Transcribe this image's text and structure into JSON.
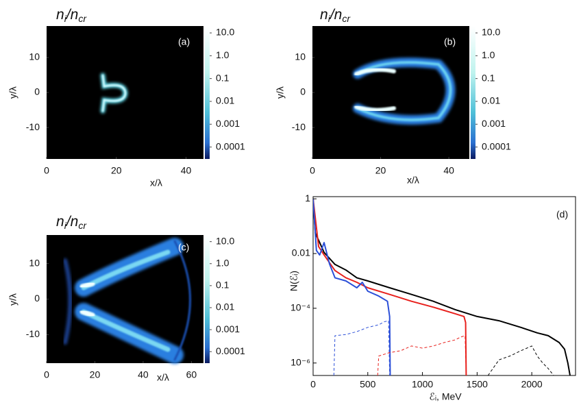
{
  "chart_data": [
    {
      "type": "density-map",
      "title": "ni/ncr",
      "annotation": "(a)",
      "xlabel": "x/λ",
      "ylabel": "y/λ",
      "xlim": [
        0,
        45
      ],
      "ylim": [
        -19,
        19
      ],
      "xticks": [
        0,
        20,
        40
      ],
      "yticks": [
        -10,
        0,
        10
      ],
      "colorbar": {
        "log_scale": true,
        "lim": [
          3e-05,
          20
        ],
        "ticks": [
          {
            "value": 10,
            "label": "10.0"
          },
          {
            "value": 1,
            "label": "1.0"
          },
          0.1,
          0.01,
          0.001,
          0.0001
        ]
      }
    },
    {
      "type": "density-map",
      "title": "ni/ncr",
      "annotation": "(b)",
      "xlabel": "x/λ",
      "ylabel": "y/λ",
      "xlim": [
        0,
        46
      ],
      "ylim": [
        -19,
        19
      ],
      "xticks": [
        0,
        20,
        40
      ],
      "yticks": [
        -10,
        0,
        10
      ],
      "colorbar": {
        "log_scale": true,
        "lim": [
          3e-05,
          20
        ],
        "ticks": [
          {
            "value": 10,
            "label": "10.0"
          },
          {
            "value": 1,
            "label": "1.0"
          },
          0.1,
          0.01,
          0.001,
          0.0001
        ]
      }
    },
    {
      "type": "density-map",
      "title": "ni/ncr",
      "annotation": "(c)",
      "xlabel": "x/λ",
      "ylabel": "y/λ",
      "xlim": [
        0,
        65
      ],
      "ylim": [
        -18,
        18
      ],
      "xticks": [
        0,
        20,
        40,
        60
      ],
      "yticks": [
        -10,
        0,
        10
      ],
      "colorbar": {
        "log_scale": true,
        "lim": [
          3e-05,
          20
        ],
        "ticks": [
          {
            "value": 10,
            "label": "10.0"
          },
          {
            "value": 1,
            "label": "1.0"
          },
          0.1,
          0.01,
          0.001,
          0.0001
        ]
      }
    },
    {
      "type": "line",
      "annotation": "(d)",
      "xlabel": "ℰᵢ, MeV",
      "ylabel": "N(ℰᵢ)",
      "xlim": [
        0,
        2400
      ],
      "ylim": [
        3.5e-07,
        1.2
      ],
      "log_scale_y": true,
      "xticks": [
        0,
        500,
        1000,
        1500,
        2000
      ],
      "yticks": [
        1,
        0.01,
        {
          "value": 0.0001,
          "label": "10⁻⁴"
        },
        {
          "value": 1e-06,
          "label": "10⁻⁶"
        }
      ],
      "series": [
        {
          "color": "#000000",
          "dash": false,
          "x": [
            0,
            20,
            60,
            100,
            200,
            300,
            400,
            500,
            700,
            900,
            1100,
            1300,
            1500,
            1700,
            1900,
            2050,
            2150,
            2250,
            2300,
            2330,
            2350
          ],
          "values": [
            1,
            0.056,
            0.025,
            0.011,
            0.004,
            0.0025,
            0.0013,
            0.001,
            0.00056,
            0.00032,
            0.00018,
            8.9e-05,
            5e-05,
            3.5e-05,
            2e-05,
            1.26e-05,
            1e-05,
            5.6e-06,
            3.2e-06,
            1e-06,
            3.5e-07
          ]
        },
        {
          "color": "#e8201c",
          "dash": false,
          "x": [
            0,
            50,
            100,
            200,
            300,
            400,
            500,
            700,
            900,
            1100,
            1300,
            1380,
            1395,
            1400
          ],
          "values": [
            1,
            0.018,
            0.0089,
            0.0024,
            0.0013,
            0.00089,
            0.00056,
            0.00032,
            0.00018,
            0.00011,
            6.3e-05,
            5e-05,
            3e-05,
            3.5e-07
          ]
        },
        {
          "color": "#2b4fd8",
          "dash": false,
          "x": [
            0,
            30,
            60,
            100,
            150,
            200,
            300,
            400,
            450,
            500,
            600,
            680,
            700,
            705
          ],
          "values": [
            1,
            0.013,
            0.0089,
            0.025,
            0.0042,
            0.0013,
            0.001,
            0.00056,
            0.00089,
            0.00042,
            0.00028,
            0.00018,
            5e-05,
            3.5e-07
          ]
        },
        {
          "color": "#2b4fd8",
          "dash": true,
          "x": [
            190,
            200,
            300,
            400,
            500,
            600,
            650,
            690,
            700
          ],
          "values": [
            3.5e-07,
            1e-05,
            1.1e-05,
            1.4e-05,
            2e-05,
            2.5e-05,
            3.2e-05,
            3.5e-05,
            3.5e-07
          ]
        },
        {
          "color": "#e8201c",
          "dash": true,
          "x": [
            590,
            600,
            700,
            800,
            900,
            1000,
            1100,
            1200,
            1300,
            1350,
            1390,
            1400
          ],
          "values": [
            3.5e-07,
            1.8e-06,
            2.4e-06,
            2.8e-06,
            4.2e-06,
            3.5e-06,
            4.2e-06,
            5.6e-06,
            7e-06,
            8.9e-06,
            1e-05,
            3.5e-07
          ]
        },
        {
          "color": "#000000",
          "dash": true,
          "x": [
            1600,
            1700,
            1800,
            1900,
            2000,
            2050,
            2100,
            2150,
            2200
          ],
          "values": [
            3.5e-07,
            1.3e-06,
            1.8e-06,
            2.8e-06,
            4.2e-06,
            1.8e-06,
            1e-06,
            6.3e-07,
            3.5e-07
          ]
        }
      ]
    }
  ]
}
